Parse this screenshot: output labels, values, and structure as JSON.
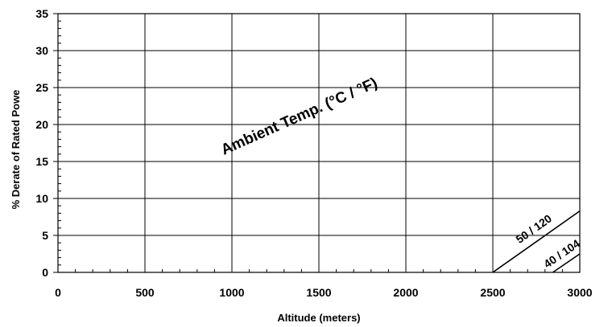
{
  "chart_data": {
    "type": "line",
    "title": "",
    "xlabel": "Altitude (meters)",
    "ylabel": "% Derate of Rated Powe",
    "xlim": [
      0,
      3000
    ],
    "ylim": [
      0,
      35
    ],
    "x_ticks": [
      0,
      500,
      1000,
      1500,
      2000,
      2500,
      3000
    ],
    "y_ticks": [
      0,
      5,
      10,
      15,
      20,
      25,
      30,
      35
    ],
    "grid": true,
    "legend": "none",
    "annotation": "Ambient Temp. (°C / °F)",
    "series": [
      {
        "name": "50 / 120",
        "x": [
          2500,
          3000
        ],
        "y": [
          0,
          8.3
        ]
      },
      {
        "name": "40 / 104",
        "x": [
          2845,
          3000
        ],
        "y": [
          0,
          2.5
        ]
      }
    ],
    "colors": {
      "line": "#000000",
      "grid": "#000000",
      "background": "#ffffff"
    }
  }
}
